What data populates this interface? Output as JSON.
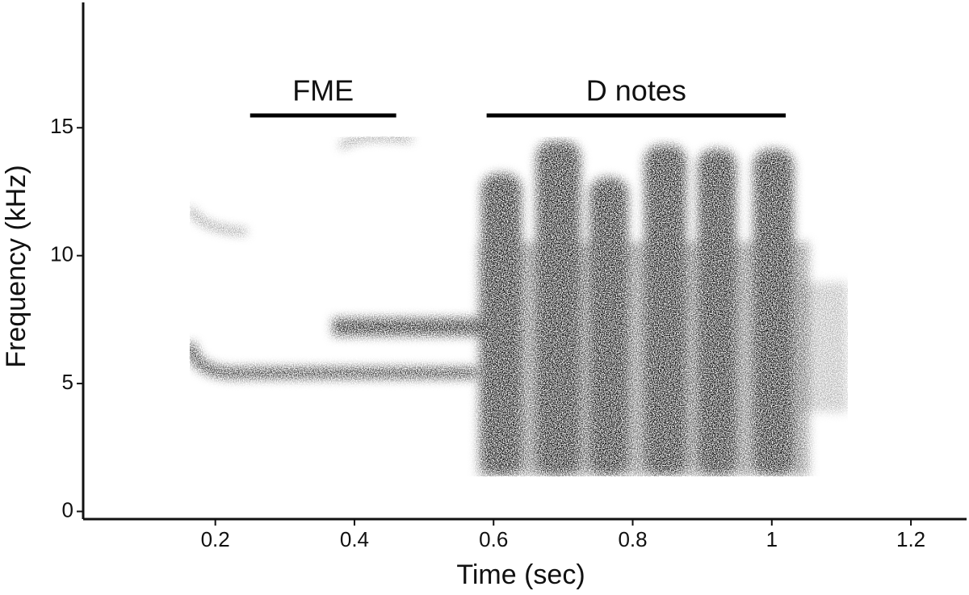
{
  "chart_data": {
    "type": "spectrogram",
    "x_label": "Time (sec)",
    "y_label": "Frequency (kHz)",
    "xlim": [
      0.01,
      1.28
    ],
    "ylim": [
      -0.3,
      19.9
    ],
    "xticks": [
      0.2,
      0.4,
      0.6,
      0.8,
      1,
      1.2
    ],
    "yticks": [
      0,
      5,
      10,
      15
    ],
    "annotations": [
      {
        "text": "FME",
        "x": [
          0.25,
          0.46
        ]
      },
      {
        "text": "D notes",
        "x": [
          0.59,
          1.02
        ]
      }
    ]
  }
}
